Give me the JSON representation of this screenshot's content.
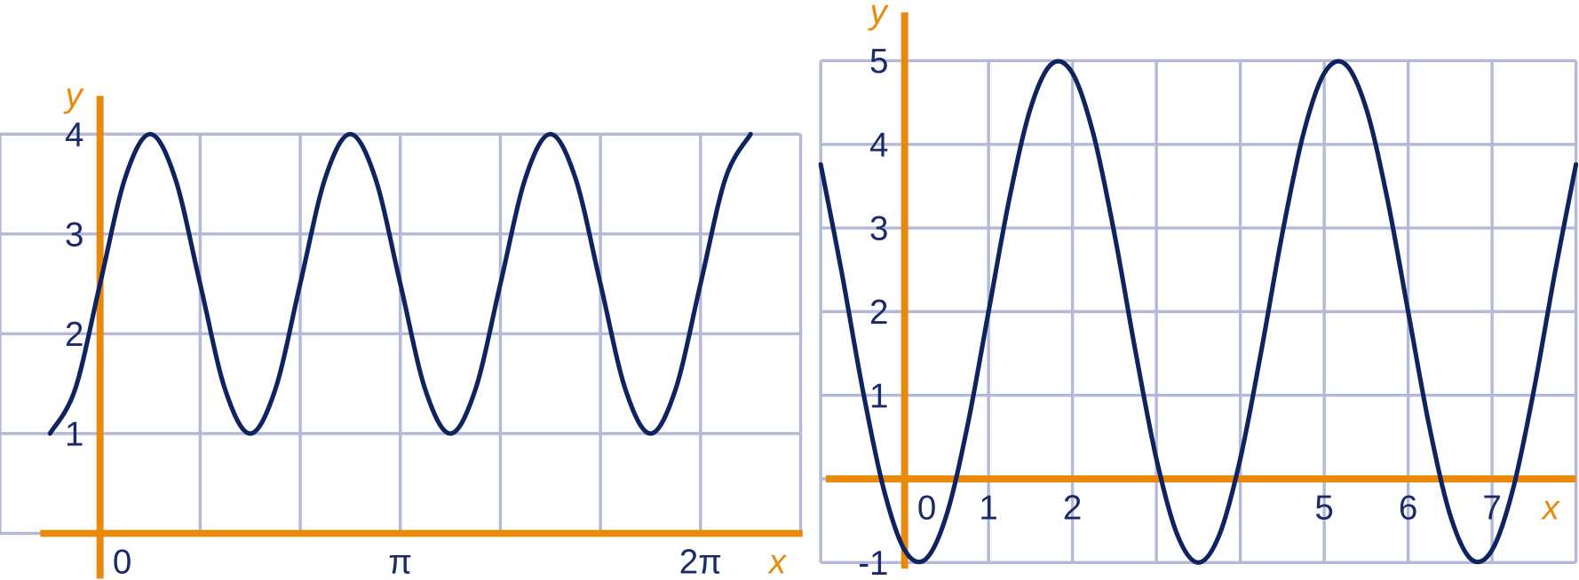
{
  "chart_data": [
    {
      "type": "line",
      "x": [
        -0.524,
        -0.262,
        0,
        0.262,
        0.524,
        0.785,
        1.047,
        1.309,
        1.571,
        1.833,
        2.094,
        2.356,
        2.618,
        2.88,
        3.142,
        3.403,
        3.665,
        3.927,
        4.189,
        4.451,
        4.712,
        4.974,
        5.236,
        5.498,
        5.76,
        6.021,
        6.283,
        6.545,
        6.807
      ],
      "series": [
        {
          "color": "#0f2360",
          "values": [
            1,
            1.44,
            2.5,
            3.56,
            4,
            3.56,
            2.5,
            1.44,
            1,
            1.44,
            2.5,
            3.56,
            4,
            3.56,
            2.5,
            1.44,
            1,
            1.44,
            2.5,
            3.56,
            4,
            3.56,
            2.5,
            1.44,
            1,
            1.44,
            2.5,
            3.56,
            4
          ]
        }
      ],
      "xlim": [
        -1.047,
        7.33
      ],
      "ylim": [
        0,
        4
      ],
      "xticks": [
        0,
        {
          "value": 3.1416,
          "label": "π"
        },
        {
          "value": 6.2832,
          "label": "2π"
        }
      ],
      "yticks": [
        1,
        2,
        3,
        4
      ],
      "xlabel": "x",
      "ylabel": "y",
      "grid": true,
      "axis_color": "#e8890c"
    },
    {
      "type": "line",
      "x": [
        -1,
        -0.75,
        -0.5,
        -0.25,
        0,
        0.25,
        0.5,
        0.75,
        1,
        1.25,
        1.5,
        1.75,
        2,
        2.25,
        2.5,
        2.75,
        3,
        3.25,
        3.5,
        3.75,
        4,
        4.25,
        4.5,
        4.75,
        5,
        5.25,
        5.5,
        5.75,
        6,
        6.25,
        6.5,
        6.75,
        7,
        7.25,
        7.5,
        7.75,
        8
      ],
      "series": [
        {
          "color": "#0f2360",
          "values": [
            3.76,
            2.47,
            1.07,
            -0.12,
            -0.85,
            -0.96,
            -0.43,
            0.64,
            2,
            3.36,
            4.43,
            4.96,
            4.85,
            4.12,
            2.93,
            1.53,
            0.24,
            -0.67,
            -1,
            -0.67,
            0.24,
            1.53,
            2.93,
            4.12,
            4.85,
            4.96,
            4.43,
            3.36,
            2,
            0.64,
            -0.43,
            -0.96,
            -0.85,
            -0.12,
            1.07,
            2.47,
            3.76
          ]
        }
      ],
      "xlim": [
        -1,
        8
      ],
      "ylim": [
        -1,
        5
      ],
      "xticks": [
        0,
        1,
        2,
        5,
        6,
        7
      ],
      "yticks": [
        -1,
        1,
        2,
        3,
        4,
        5
      ],
      "xlabel": "x",
      "ylabel": "y",
      "grid": true,
      "axis_color": "#e8890c"
    }
  ]
}
